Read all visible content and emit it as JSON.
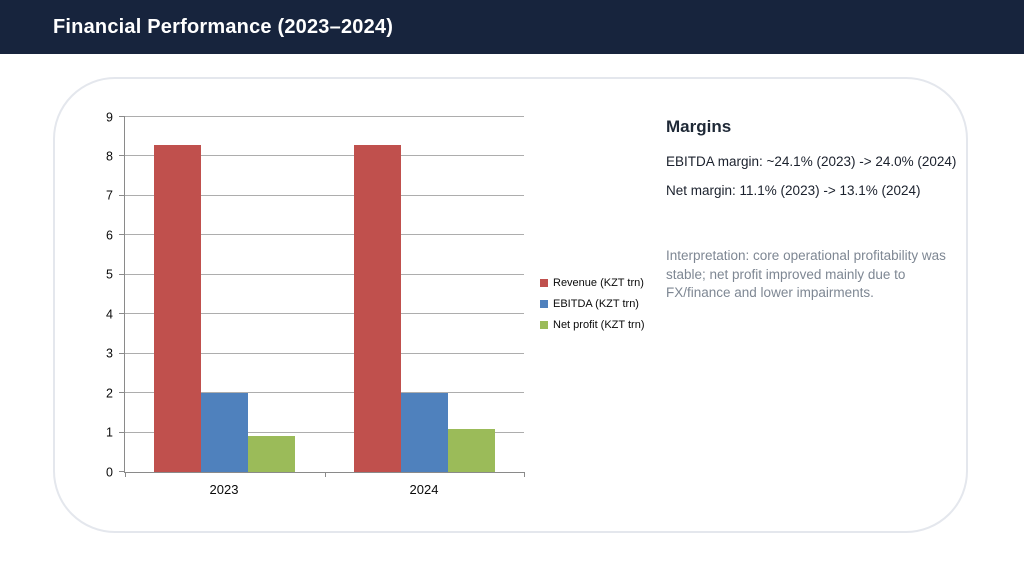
{
  "header": {
    "title": "Financial Performance (2023–2024)",
    "bg_color": "#17243D"
  },
  "chart_data": {
    "type": "bar",
    "title": "",
    "xlabel": "",
    "ylabel": "",
    "categories": [
      "2023",
      "2024"
    ],
    "series": [
      {
        "name": "Revenue (KZT trn)",
        "color": "#C0504D",
        "values": [
          8.3,
          8.3
        ]
      },
      {
        "name": "EBITDA (KZT trn)",
        "color": "#4F81BD",
        "values": [
          2.0,
          2.0
        ]
      },
      {
        "name": "Net profit (KZT trn)",
        "color": "#9BBB59",
        "values": [
          0.92,
          1.09
        ]
      }
    ],
    "ylim": [
      0,
      9
    ],
    "ytick_step": 1,
    "grid": true,
    "legend_position": "right"
  },
  "margins_panel": {
    "heading": "Margins",
    "lines": [
      "EBITDA margin: ~24.1% (2023) -> 24.0% (2024)",
      "Net margin: 11.1% (2023) -> 13.1% (2024)"
    ],
    "interpretation": "Interpretation: core operational profitability was stable; net profit improved mainly due to FX/finance and lower impairments."
  }
}
